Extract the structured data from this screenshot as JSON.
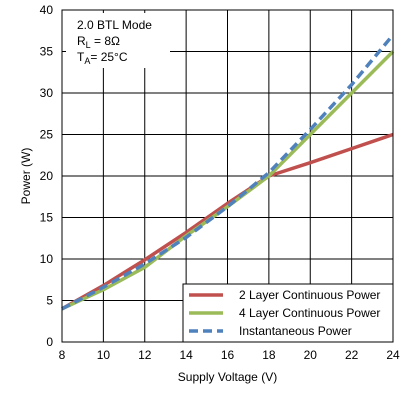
{
  "chart_data": {
    "type": "line",
    "xlabel": "Supply Voltage (V)",
    "ylabel": "Power (W)",
    "xlim": [
      8,
      24
    ],
    "ylim": [
      0,
      40
    ],
    "x_ticks": [
      8,
      10,
      12,
      14,
      16,
      18,
      20,
      22,
      24
    ],
    "y_ticks": [
      0,
      5,
      10,
      15,
      20,
      25,
      30,
      35,
      40
    ],
    "x_tick_labels": [
      "8",
      "10",
      "12",
      "14",
      "16",
      "18",
      "20",
      "22",
      "24"
    ],
    "y_tick_labels": [
      "0",
      "5",
      "10",
      "15",
      "20",
      "25",
      "30",
      "35",
      "40"
    ],
    "grid": true,
    "legend_position": "bottom-right",
    "annotation": {
      "line1": "2.0 BTL Mode",
      "line2_main": "R",
      "line2_sub": "L",
      "line2_rest": " = 8Ω",
      "line3_main": "T",
      "line3_sub": "A",
      "line3_rest": "= 25°C"
    },
    "series": [
      {
        "name": "2 Layer Continuous Power",
        "color": "#c0504d",
        "dash": "solid",
        "x": [
          8,
          10,
          12,
          14,
          16,
          18,
          20,
          22,
          24
        ],
        "y": [
          4.0,
          6.8,
          9.9,
          13.2,
          16.7,
          20.0,
          21.6,
          23.3,
          25.0
        ]
      },
      {
        "name": "4 Layer Continuous Power",
        "color": "#9bbb59",
        "dash": "solid",
        "x": [
          8,
          10,
          12,
          14,
          16,
          18,
          20,
          22,
          24
        ],
        "y": [
          4.0,
          6.3,
          9.0,
          12.8,
          16.3,
          20.0,
          25.0,
          30.0,
          35.0
        ]
      },
      {
        "name": "Instantaneous Power",
        "color": "#4f81bd",
        "dash": "dashed",
        "x": [
          8,
          10,
          12,
          14,
          16,
          18,
          20,
          22,
          24
        ],
        "y": [
          4.0,
          6.6,
          9.4,
          12.6,
          16.3,
          20.4,
          25.6,
          31.0,
          37.0
        ]
      }
    ]
  }
}
